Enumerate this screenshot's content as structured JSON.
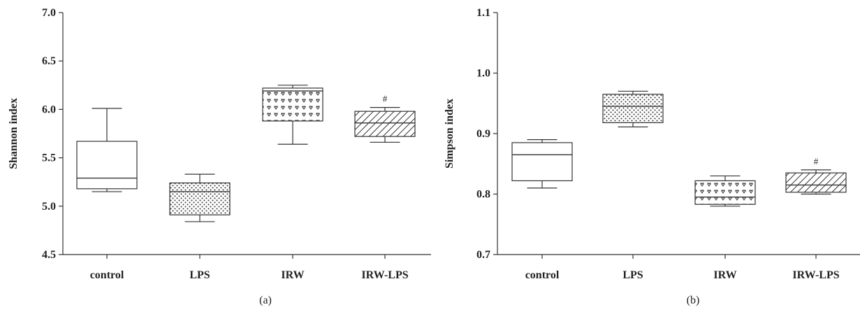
{
  "chart_data": [
    {
      "type": "box",
      "panel_label": "(a)",
      "ylabel": "Shannon index",
      "ylim": [
        4.5,
        7.0
      ],
      "yticks": [
        "4.5",
        "5.0",
        "5.5",
        "6.0",
        "6.5",
        "7.0"
      ],
      "categories": [
        "control",
        "LPS",
        "IRW",
        "IRW-LPS"
      ],
      "boxes": [
        {
          "min": 5.15,
          "q1": 5.18,
          "median": 5.29,
          "q3": 5.67,
          "max": 6.01,
          "pattern": "none",
          "annotation": ""
        },
        {
          "min": 4.84,
          "q1": 4.91,
          "median": 5.15,
          "q3": 5.24,
          "max": 5.33,
          "pattern": "dots",
          "annotation": ""
        },
        {
          "min": 5.64,
          "q1": 5.88,
          "median": 6.19,
          "q3": 6.22,
          "max": 6.25,
          "pattern": "hearts",
          "annotation": ""
        },
        {
          "min": 5.66,
          "q1": 5.72,
          "median": 5.86,
          "q3": 5.98,
          "max": 6.02,
          "pattern": "hatch",
          "annotation": "#"
        }
      ]
    },
    {
      "type": "box",
      "panel_label": "(b)",
      "ylabel": "Simpson index",
      "ylim": [
        0.7,
        1.1
      ],
      "yticks": [
        "0.7",
        "0.8",
        "0.9",
        "1.0",
        "1.1"
      ],
      "categories": [
        "control",
        "LPS",
        "IRW",
        "IRW-LPS"
      ],
      "boxes": [
        {
          "min": 0.81,
          "q1": 0.822,
          "median": 0.865,
          "q3": 0.885,
          "max": 0.89,
          "pattern": "none",
          "annotation": ""
        },
        {
          "min": 0.911,
          "q1": 0.918,
          "median": 0.945,
          "q3": 0.965,
          "max": 0.97,
          "pattern": "dots",
          "annotation": ""
        },
        {
          "min": 0.78,
          "q1": 0.783,
          "median": 0.795,
          "q3": 0.822,
          "max": 0.83,
          "pattern": "hearts",
          "annotation": ""
        },
        {
          "min": 0.8,
          "q1": 0.803,
          "median": 0.815,
          "q3": 0.835,
          "max": 0.84,
          "pattern": "hatch",
          "annotation": "#"
        }
      ]
    }
  ]
}
